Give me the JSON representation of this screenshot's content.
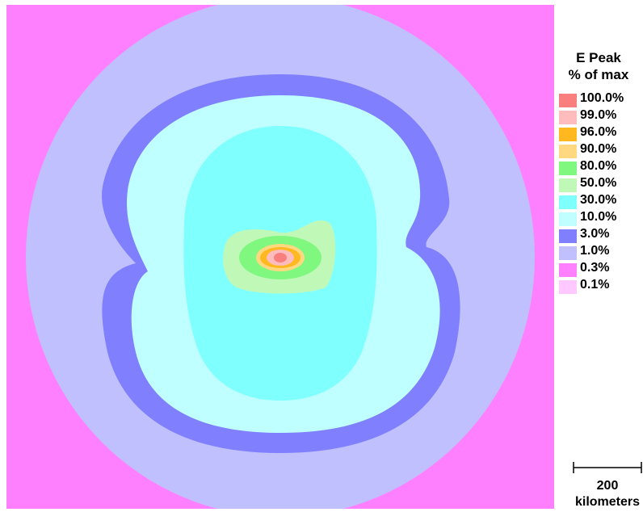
{
  "legend": {
    "title_line1": "E Peak",
    "title_line2": "% of max",
    "items": [
      {
        "label": "100.0%",
        "color": "#f97f7f"
      },
      {
        "label": "99.0%",
        "color": "#ffbcbc"
      },
      {
        "label": "96.0%",
        "color": "#ffb820"
      },
      {
        "label": "90.0%",
        "color": "#ffd880"
      },
      {
        "label": "80.0%",
        "color": "#80f880"
      },
      {
        "label": "50.0%",
        "color": "#c0f8b8"
      },
      {
        "label": "30.0%",
        "color": "#80ffff"
      },
      {
        "label": "10.0%",
        "color": "#c0ffff"
      },
      {
        "label": "3.0%",
        "color": "#8080ff"
      },
      {
        "label": "1.0%",
        "color": "#c0c0ff"
      },
      {
        "label": "0.3%",
        "color": "#ff80ff"
      },
      {
        "label": "0.1%",
        "color": "#ffc8ff"
      }
    ]
  },
  "scale_bar": {
    "value": "200",
    "unit": "kilometers"
  }
}
